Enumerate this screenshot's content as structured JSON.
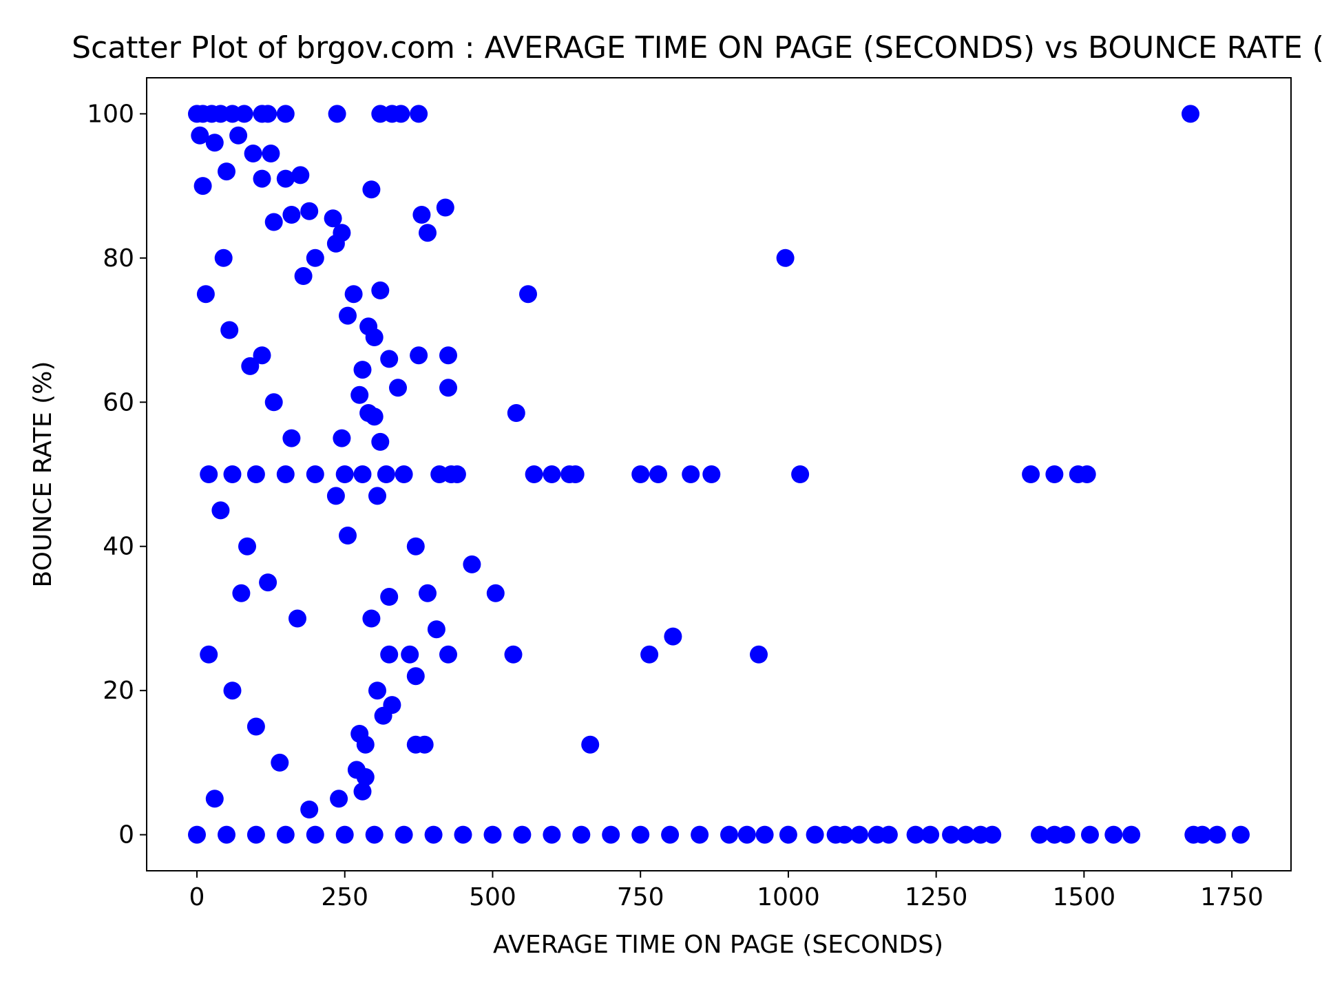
{
  "chart_data": {
    "type": "scatter",
    "title": "Scatter Plot of brgov.com : AVERAGE TIME ON PAGE (SECONDS) vs BOUNCE RATE (%)",
    "xlabel": "AVERAGE TIME ON PAGE (SECONDS)",
    "ylabel": "BOUNCE RATE (%)",
    "xlim": [
      -85,
      1850
    ],
    "ylim": [
      -5,
      105
    ],
    "xticks": [
      0,
      250,
      500,
      750,
      1000,
      1250,
      1500,
      1750
    ],
    "yticks": [
      0,
      20,
      40,
      60,
      80,
      100
    ],
    "grid": false,
    "legend": "none",
    "marker_color": "#0000ff",
    "series": [
      {
        "values": [
          [
            0,
            100
          ],
          [
            10,
            100
          ],
          [
            25,
            100
          ],
          [
            40,
            100
          ],
          [
            60,
            100
          ],
          [
            80,
            100
          ],
          [
            110,
            100
          ],
          [
            120,
            100
          ],
          [
            150,
            100
          ],
          [
            237,
            100
          ],
          [
            310,
            100
          ],
          [
            330,
            100
          ],
          [
            345,
            100
          ],
          [
            375,
            100
          ],
          [
            1680,
            100
          ],
          [
            5,
            97
          ],
          [
            30,
            96
          ],
          [
            70,
            97
          ],
          [
            95,
            94.5
          ],
          [
            125,
            94.5
          ],
          [
            110,
            91
          ],
          [
            150,
            91
          ],
          [
            175,
            91.5
          ],
          [
            295,
            89.5
          ],
          [
            10,
            90
          ],
          [
            50,
            92
          ],
          [
            420,
            87
          ],
          [
            380,
            86
          ],
          [
            390,
            83.5
          ],
          [
            230,
            85.5
          ],
          [
            245,
            83.5
          ],
          [
            235,
            82
          ],
          [
            200,
            80
          ],
          [
            995,
            80
          ],
          [
            190,
            86.5
          ],
          [
            160,
            86
          ],
          [
            130,
            85
          ],
          [
            560,
            75
          ],
          [
            310,
            75.5
          ],
          [
            265,
            75
          ],
          [
            255,
            72
          ],
          [
            290,
            70.5
          ],
          [
            300,
            69
          ],
          [
            375,
            66.5
          ],
          [
            425,
            66.5
          ],
          [
            325,
            66
          ],
          [
            340,
            62
          ],
          [
            425,
            62
          ],
          [
            540,
            58.5
          ],
          [
            300,
            58
          ],
          [
            310,
            54.5
          ],
          [
            245,
            55
          ],
          [
            290,
            58.5
          ],
          [
            275,
            61
          ],
          [
            280,
            64.5
          ],
          [
            410,
            50
          ],
          [
            430,
            50
          ],
          [
            440,
            50
          ],
          [
            570,
            50
          ],
          [
            600,
            50
          ],
          [
            630,
            50
          ],
          [
            640,
            50
          ],
          [
            750,
            50
          ],
          [
            780,
            50
          ],
          [
            835,
            50
          ],
          [
            870,
            50
          ],
          [
            1020,
            50
          ],
          [
            1410,
            50
          ],
          [
            1450,
            50
          ],
          [
            1490,
            50
          ],
          [
            1505,
            50
          ],
          [
            350,
            50
          ],
          [
            320,
            50
          ],
          [
            305,
            47
          ],
          [
            235,
            47
          ],
          [
            255,
            41.5
          ],
          [
            370,
            40
          ],
          [
            465,
            37.5
          ],
          [
            505,
            33.5
          ],
          [
            390,
            33.5
          ],
          [
            325,
            33
          ],
          [
            295,
            30
          ],
          [
            405,
            28.5
          ],
          [
            805,
            27.5
          ],
          [
            765,
            25
          ],
          [
            950,
            25
          ],
          [
            535,
            25
          ],
          [
            425,
            25
          ],
          [
            360,
            25
          ],
          [
            325,
            25
          ],
          [
            370,
            22
          ],
          [
            330,
            18
          ],
          [
            305,
            20
          ],
          [
            315,
            16.5
          ],
          [
            285,
            12.5
          ],
          [
            370,
            12.5
          ],
          [
            385,
            12.5
          ],
          [
            665,
            12.5
          ],
          [
            275,
            14
          ],
          [
            285,
            8
          ],
          [
            280,
            6
          ],
          [
            240,
            5
          ],
          [
            270,
            9
          ],
          [
            190,
            3.5
          ],
          [
            20,
            50
          ],
          [
            60,
            50
          ],
          [
            100,
            50
          ],
          [
            150,
            50
          ],
          [
            200,
            50
          ],
          [
            250,
            50
          ],
          [
            280,
            50
          ],
          [
            15,
            75
          ],
          [
            55,
            70
          ],
          [
            90,
            65
          ],
          [
            130,
            60
          ],
          [
            160,
            55
          ],
          [
            40,
            45
          ],
          [
            85,
            40
          ],
          [
            120,
            35
          ],
          [
            170,
            30
          ],
          [
            20,
            25
          ],
          [
            60,
            20
          ],
          [
            100,
            15
          ],
          [
            140,
            10
          ],
          [
            30,
            5
          ],
          [
            75,
            33.5
          ],
          [
            110,
            66.5
          ],
          [
            45,
            80
          ],
          [
            180,
            77.5
          ],
          [
            0,
            0
          ],
          [
            50,
            0
          ],
          [
            100,
            0
          ],
          [
            150,
            0
          ],
          [
            200,
            0
          ],
          [
            250,
            0
          ],
          [
            300,
            0
          ],
          [
            350,
            0
          ],
          [
            400,
            0
          ],
          [
            450,
            0
          ],
          [
            500,
            0
          ],
          [
            550,
            0
          ],
          [
            600,
            0
          ],
          [
            650,
            0
          ],
          [
            700,
            0
          ],
          [
            750,
            0
          ],
          [
            800,
            0
          ],
          [
            850,
            0
          ],
          [
            900,
            0
          ],
          [
            930,
            0
          ],
          [
            960,
            0
          ],
          [
            1000,
            0
          ],
          [
            1045,
            0
          ],
          [
            1080,
            0
          ],
          [
            1095,
            0
          ],
          [
            1120,
            0
          ],
          [
            1150,
            0
          ],
          [
            1170,
            0
          ],
          [
            1215,
            0
          ],
          [
            1240,
            0
          ],
          [
            1275,
            0
          ],
          [
            1300,
            0
          ],
          [
            1325,
            0
          ],
          [
            1345,
            0
          ],
          [
            1425,
            0
          ],
          [
            1450,
            0
          ],
          [
            1470,
            0
          ],
          [
            1510,
            0
          ],
          [
            1550,
            0
          ],
          [
            1580,
            0
          ],
          [
            1685,
            0
          ],
          [
            1700,
            0
          ],
          [
            1725,
            0
          ],
          [
            1765,
            0
          ]
        ]
      }
    ]
  }
}
